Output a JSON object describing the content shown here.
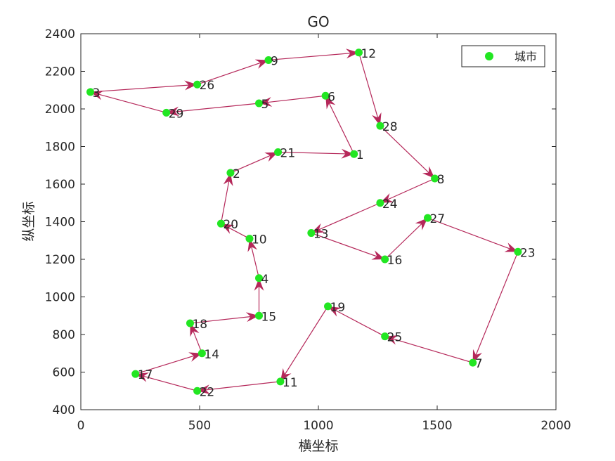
{
  "chart_data": {
    "type": "scatter",
    "title": "GO",
    "xlabel": "横坐标",
    "ylabel": "纵坐标",
    "xlim": [
      0,
      2000
    ],
    "ylim": [
      400,
      2400
    ],
    "xticks": [
      0,
      500,
      1000,
      1500,
      2000
    ],
    "yticks": [
      400,
      600,
      800,
      1000,
      1200,
      1400,
      1600,
      1800,
      2000,
      2200,
      2400
    ],
    "grid": false,
    "legend": {
      "position": "top-right",
      "entries": [
        "城市"
      ]
    },
    "colors": {
      "points": "#22e622",
      "route": "#b5285a",
      "axes": "#262626"
    },
    "cities": [
      {
        "id": "1",
        "x": 1150,
        "y": 1760
      },
      {
        "id": "2",
        "x": 630,
        "y": 1660
      },
      {
        "id": "3",
        "x": 40,
        "y": 2090
      },
      {
        "id": "4",
        "x": 750,
        "y": 1100
      },
      {
        "id": "5",
        "x": 750,
        "y": 2030
      },
      {
        "id": "6",
        "x": 1030,
        "y": 2070
      },
      {
        "id": "7",
        "x": 1650,
        "y": 650
      },
      {
        "id": "8",
        "x": 1490,
        "y": 1630
      },
      {
        "id": "9",
        "x": 790,
        "y": 2260
      },
      {
        "id": "10",
        "x": 710,
        "y": 1310
      },
      {
        "id": "11",
        "x": 840,
        "y": 550
      },
      {
        "id": "12",
        "x": 1170,
        "y": 2300
      },
      {
        "id": "13",
        "x": 970,
        "y": 1340
      },
      {
        "id": "14",
        "x": 510,
        "y": 700
      },
      {
        "id": "15",
        "x": 750,
        "y": 900
      },
      {
        "id": "16",
        "x": 1280,
        "y": 1200
      },
      {
        "id": "17",
        "x": 230,
        "y": 590
      },
      {
        "id": "18",
        "x": 460,
        "y": 860
      },
      {
        "id": "19",
        "x": 1040,
        "y": 950
      },
      {
        "id": "20",
        "x": 590,
        "y": 1390
      },
      {
        "id": "21",
        "x": 830,
        "y": 1770
      },
      {
        "id": "22",
        "x": 490,
        "y": 500
      },
      {
        "id": "23",
        "x": 1840,
        "y": 1240
      },
      {
        "id": "24",
        "x": 1260,
        "y": 1500
      },
      {
        "id": "25",
        "x": 1280,
        "y": 790
      },
      {
        "id": "26",
        "x": 490,
        "y": 2130
      },
      {
        "id": "27",
        "x": 1460,
        "y": 1420
      },
      {
        "id": "28",
        "x": 1260,
        "y": 1910
      },
      {
        "id": "29",
        "x": 360,
        "y": 1980
      }
    ],
    "route": [
      "1",
      "6",
      "5",
      "29",
      "3",
      "26",
      "9",
      "12",
      "28",
      "8",
      "24",
      "13",
      "16",
      "27",
      "23",
      "7",
      "25",
      "19",
      "11",
      "22",
      "17",
      "14",
      "18",
      "15",
      "4",
      "10",
      "20",
      "2",
      "21",
      "1"
    ]
  }
}
